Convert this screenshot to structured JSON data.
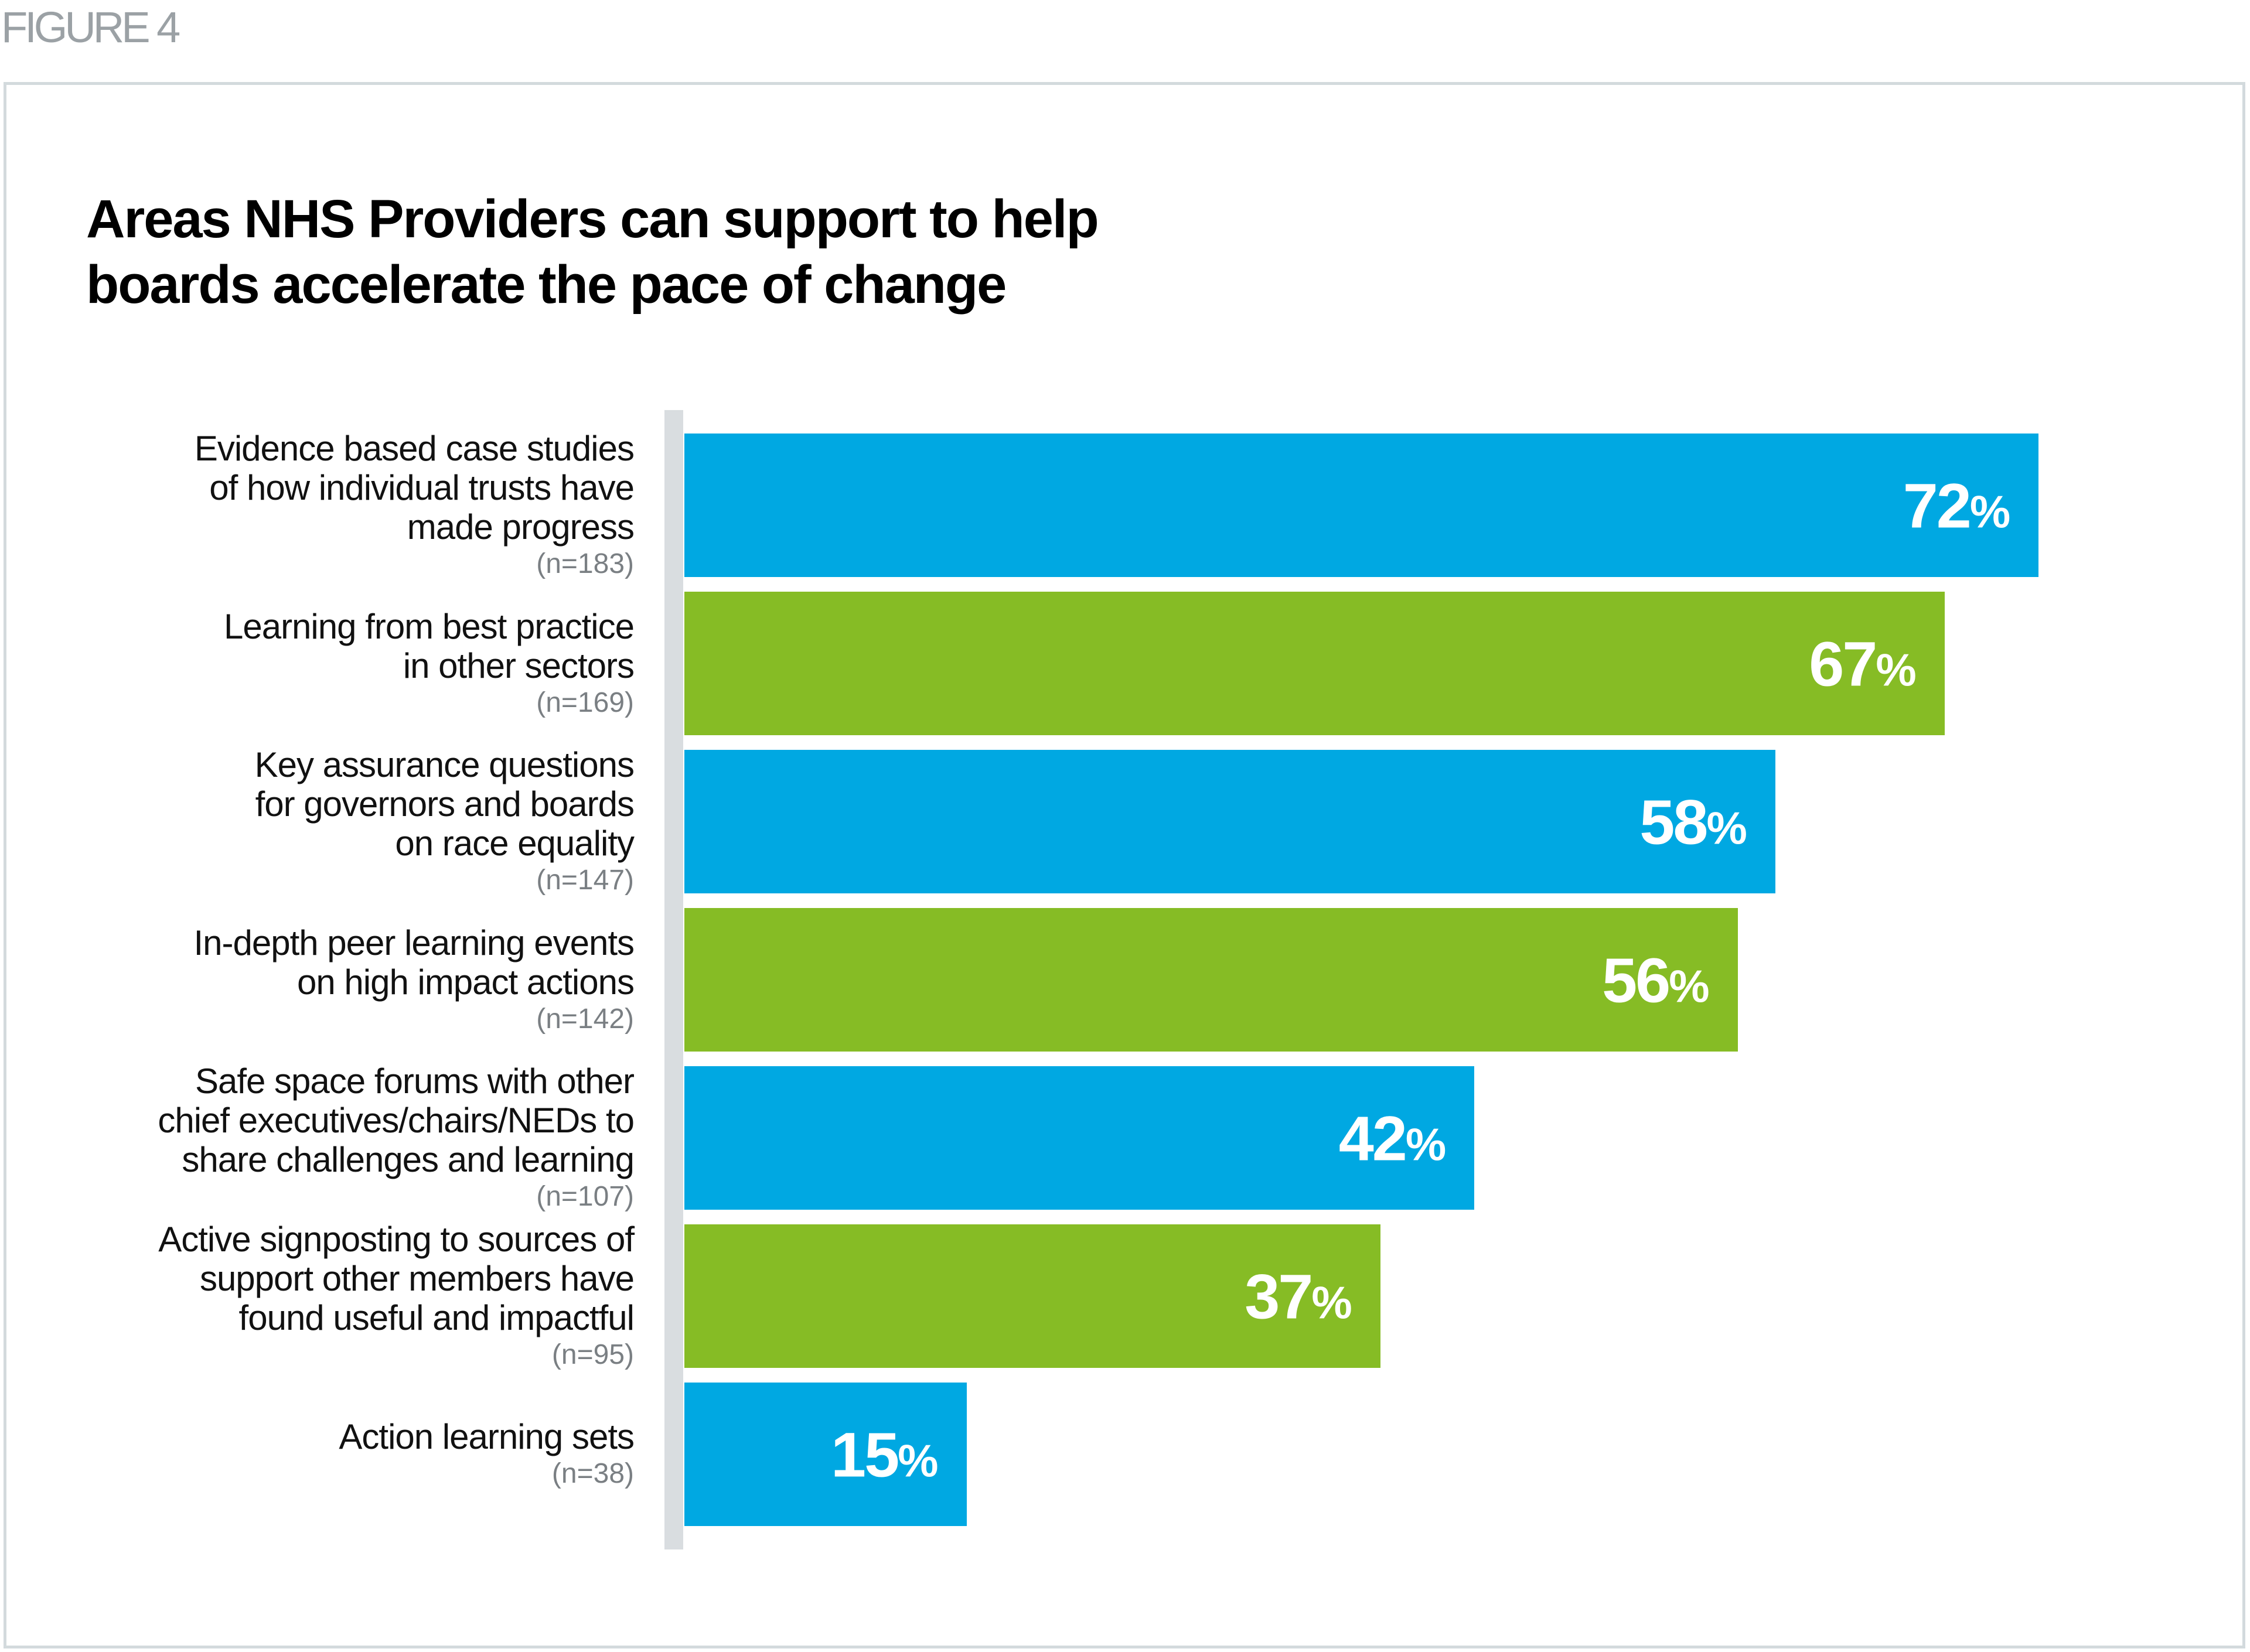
{
  "figure_label": "FIGURE 4",
  "chart_data": {
    "type": "bar",
    "orientation": "horizontal",
    "title": "Areas NHS Providers can support to help boards accelerate the pace of change",
    "title_lines": [
      "Areas NHS Providers can support to help",
      "boards accelerate the pace of change"
    ],
    "categories": [
      "Evidence based case studies\nof how individual trusts have\nmade progress",
      "Learning from best practice\nin other sectors",
      "Key assurance questions\nfor governors and boards\non race equality",
      "In-depth peer learning events\non high impact actions",
      "Safe space forums with other\nchief executives/chairs/NEDs to\nshare challenges and learning",
      "Active signposting to sources of\nsupport other members have\nfound useful and impactful",
      "Action learning sets"
    ],
    "n_labels": [
      "(n=183)",
      "(n=169)",
      "(n=147)",
      "(n=142)",
      "(n=107)",
      "(n=95)",
      "(n=38)"
    ],
    "values": [
      72,
      67,
      58,
      56,
      42,
      37,
      15
    ],
    "value_suffix": "%",
    "bar_colors": [
      "#00a8e2",
      "#86bc25",
      "#00a8e2",
      "#86bc25",
      "#00a8e2",
      "#86bc25",
      "#00a8e2"
    ],
    "xlim": [
      0,
      100
    ],
    "xlabel": "",
    "ylabel": "",
    "grid": false,
    "legend": "none"
  }
}
